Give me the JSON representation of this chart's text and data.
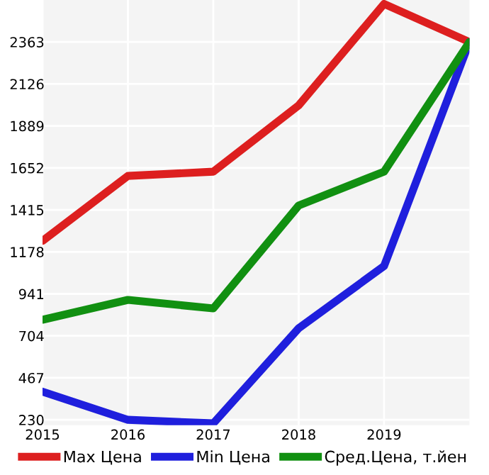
{
  "chart_data": {
    "type": "line",
    "x": [
      2015,
      2016,
      2017,
      2018,
      2019,
      2020
    ],
    "series": [
      {
        "name": "Max Цена",
        "color": "#dd1f1f",
        "values": [
          1240,
          1607,
          1631,
          2005,
          2578,
          2363
        ]
      },
      {
        "name": "Min Цена",
        "color": "#1f1fdd",
        "values": [
          389,
          230,
          210,
          747,
          1098,
          2363
        ]
      },
      {
        "name": "Сред.Цена, т.йен",
        "color": "#119011",
        "values": [
          795,
          907,
          859,
          1440,
          1631,
          2363
        ]
      }
    ],
    "xlim": [
      2015,
      2020
    ],
    "xticks": [
      2015,
      2016,
      2017,
      2018,
      2019
    ],
    "ylim": [
      200,
      2600
    ],
    "yticks": [
      230,
      467,
      704,
      941,
      1178,
      1415,
      1652,
      1889,
      2126,
      2363
    ],
    "grid": true,
    "legend": "bottom",
    "marker": "none",
    "line_style": "solid"
  }
}
